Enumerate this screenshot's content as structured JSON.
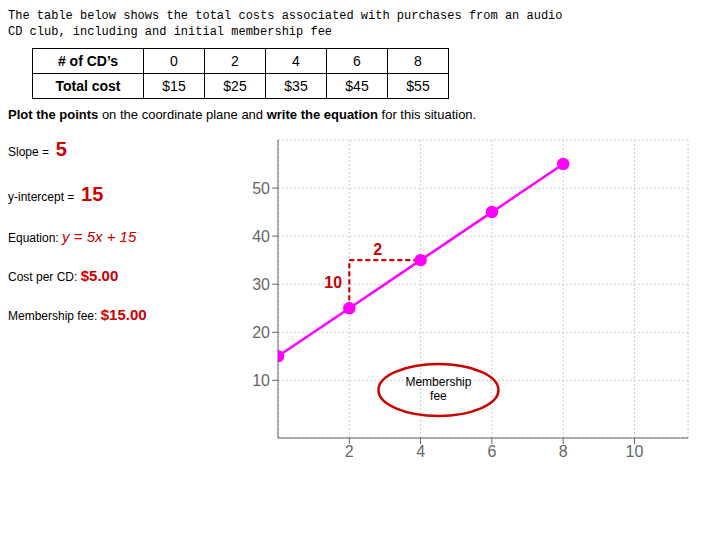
{
  "chart_data": {
    "type": "line",
    "title": "The table below shows the total costs associated with purchases from an audio",
    "subtitle": "CD club, including and initial membership fee",
    "table": [
      [
        "# of CD’s",
        "0",
        "2",
        "4",
        "6",
        "8"
      ],
      [
        "Total cost",
        "$15",
        "$25",
        "$35",
        "$45",
        "$55"
      ]
    ],
    "instruction": [
      "Plot the points",
      " on the coordinate plane and ",
      "write the equation",
      " for this situation."
    ],
    "side_labels": [
      {
        "label": "Slope = ",
        "value": "5"
      },
      {
        "label": "y-intercept = ",
        "value": "15"
      },
      {
        "label": "Equation:",
        "value": "y = 5x + 15"
      },
      {
        "label": "Cost per CD:",
        "value": "$5.00"
      },
      {
        "label": "Membership fee:",
        "value": "$15.00"
      }
    ],
    "side_color": "#CC0000",
    "x": [
      0,
      2,
      4,
      6,
      8
    ],
    "series": [
      {
        "name": "Total cost",
        "color": "#FF00FF",
        "values": [
          15,
          25,
          35,
          45,
          55
        ],
        "marker": "circle"
      }
    ],
    "xlim": [
      0,
      11.5
    ],
    "ylim": [
      -2,
      60
    ],
    "xticks": [
      2,
      4,
      6,
      8,
      10
    ],
    "yticks": [
      10,
      20,
      30,
      40,
      50
    ],
    "grid": true,
    "segments": [
      {
        "x": [
          2,
          4
        ],
        "y": [
          35,
          35
        ],
        "color": "#CC0000",
        "line_style": "dashed"
      },
      {
        "x": [
          2,
          2
        ],
        "y": [
          25,
          35
        ],
        "color": "#CC0000",
        "line_style": "dashed"
      }
    ],
    "annotations": [
      {
        "text": "2",
        "x": 2.8,
        "y": 37,
        "color": "#CC0000"
      },
      {
        "text": "10",
        "x": 1.55,
        "y": 30,
        "color": "#CC0000"
      },
      {
        "text": "Membership\nfee",
        "x": 4.5,
        "y": 8,
        "color": "#CC0000",
        "marker": "ellipse"
      }
    ]
  }
}
